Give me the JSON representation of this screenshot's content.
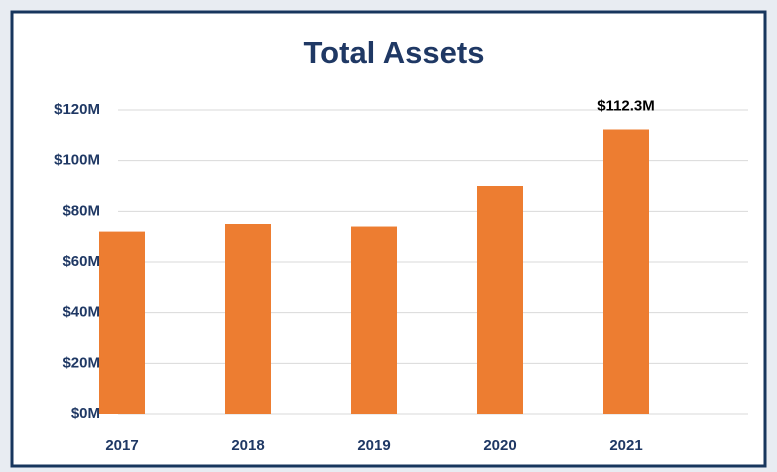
{
  "chart_data": {
    "type": "bar",
    "title": "Total Assets",
    "categories": [
      "2017",
      "2018",
      "2019",
      "2020",
      "2021"
    ],
    "values": [
      72,
      75,
      74,
      90,
      112.3
    ],
    "value_labels": [
      null,
      null,
      null,
      null,
      "$112.3M"
    ],
    "color": "#ed7d31",
    "ylim": [
      0,
      120
    ],
    "yticks": [
      {
        "value": 0,
        "label": "$0M"
      },
      {
        "value": 20,
        "label": "$20M"
      },
      {
        "value": 40,
        "label": "$40M"
      },
      {
        "value": 60,
        "label": "$60M"
      },
      {
        "value": 80,
        "label": "$80M"
      },
      {
        "value": 100,
        "label": "$100M"
      },
      {
        "value": 120,
        "label": "$120M"
      }
    ],
    "grid": true
  }
}
